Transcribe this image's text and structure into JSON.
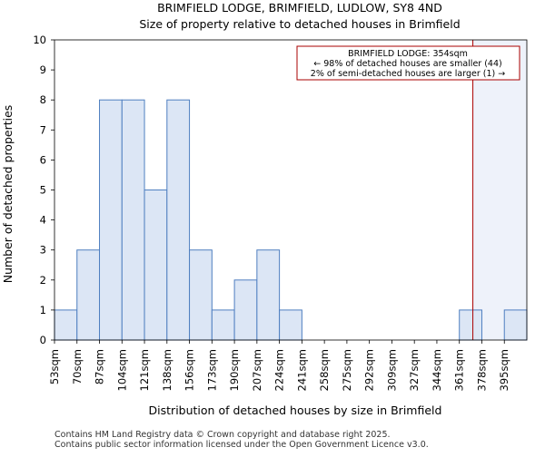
{
  "chart_data": {
    "type": "bar",
    "title": "BRIMFIELD LODGE, BRIMFIELD, LUDLOW, SY8 4ND",
    "subtitle": "Size of property relative to detached houses in Brimfield",
    "xlabel": "Distribution of detached houses by size in Brimfield",
    "ylabel": "Number of detached properties",
    "categories": [
      "53sqm",
      "70sqm",
      "87sqm",
      "104sqm",
      "121sqm",
      "138sqm",
      "156sqm",
      "173sqm",
      "190sqm",
      "207sqm",
      "224sqm",
      "241sqm",
      "258sqm",
      "275sqm",
      "292sqm",
      "309sqm",
      "327sqm",
      "344sqm",
      "361sqm",
      "378sqm",
      "395sqm"
    ],
    "values": [
      1,
      3,
      8,
      8,
      5,
      8,
      3,
      1,
      2,
      3,
      1,
      0,
      0,
      0,
      0,
      0,
      0,
      0,
      1,
      0,
      1
    ],
    "ylim": [
      0,
      10
    ],
    "yticks": [
      "0",
      "1",
      "2",
      "3",
      "4",
      "5",
      "6",
      "7",
      "8",
      "9",
      "10"
    ],
    "grid": false,
    "marker": {
      "value_sqm": 354,
      "bin_position": 18.6
    },
    "annotation": {
      "line1": "BRIMFIELD LODGE: 354sqm",
      "line2": "← 98% of detached houses are smaller (44)",
      "line3": "2% of semi-detached houses are larger (1) →"
    },
    "colors": {
      "bar_fill": "#dce6f5",
      "bar_stroke": "#4f7fc0",
      "marker_line": "#aa0000",
      "highlight": "#eef2fa",
      "annotation_border": "#aa0000"
    }
  },
  "footer": {
    "line1": "Contains HM Land Registry data © Crown copyright and database right 2025.",
    "line2": "Contains public sector information licensed under the Open Government Licence v3.0."
  }
}
